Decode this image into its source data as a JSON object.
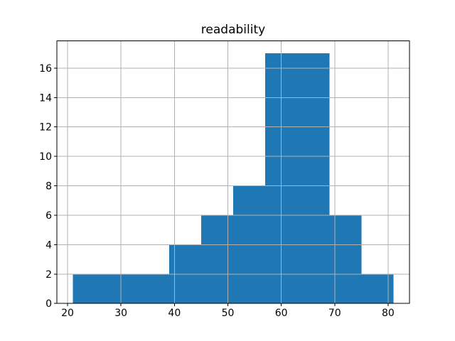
{
  "chart_data": {
    "type": "bar",
    "subtype": "histogram",
    "title": "readability",
    "xlabel": "",
    "ylabel": "",
    "bin_edges": [
      21,
      27,
      33,
      39,
      45,
      51,
      57,
      63,
      69,
      75,
      81
    ],
    "counts": [
      2,
      2,
      2,
      4,
      6,
      8,
      17,
      17,
      6,
      2
    ],
    "x_ticks": [
      20,
      30,
      40,
      50,
      60,
      70,
      80
    ],
    "y_ticks": [
      0,
      2,
      4,
      6,
      8,
      10,
      12,
      14,
      16
    ],
    "xlim": [
      18,
      84
    ],
    "ylim": [
      0,
      17.85
    ],
    "grid": true,
    "grid_position": "above-bars",
    "legend": "none",
    "bar_color": "#1f77b4",
    "grid_color": "#b0b0b0",
    "axis_color": "#000000",
    "text_color": "#000000",
    "background_color": "#ffffff"
  }
}
